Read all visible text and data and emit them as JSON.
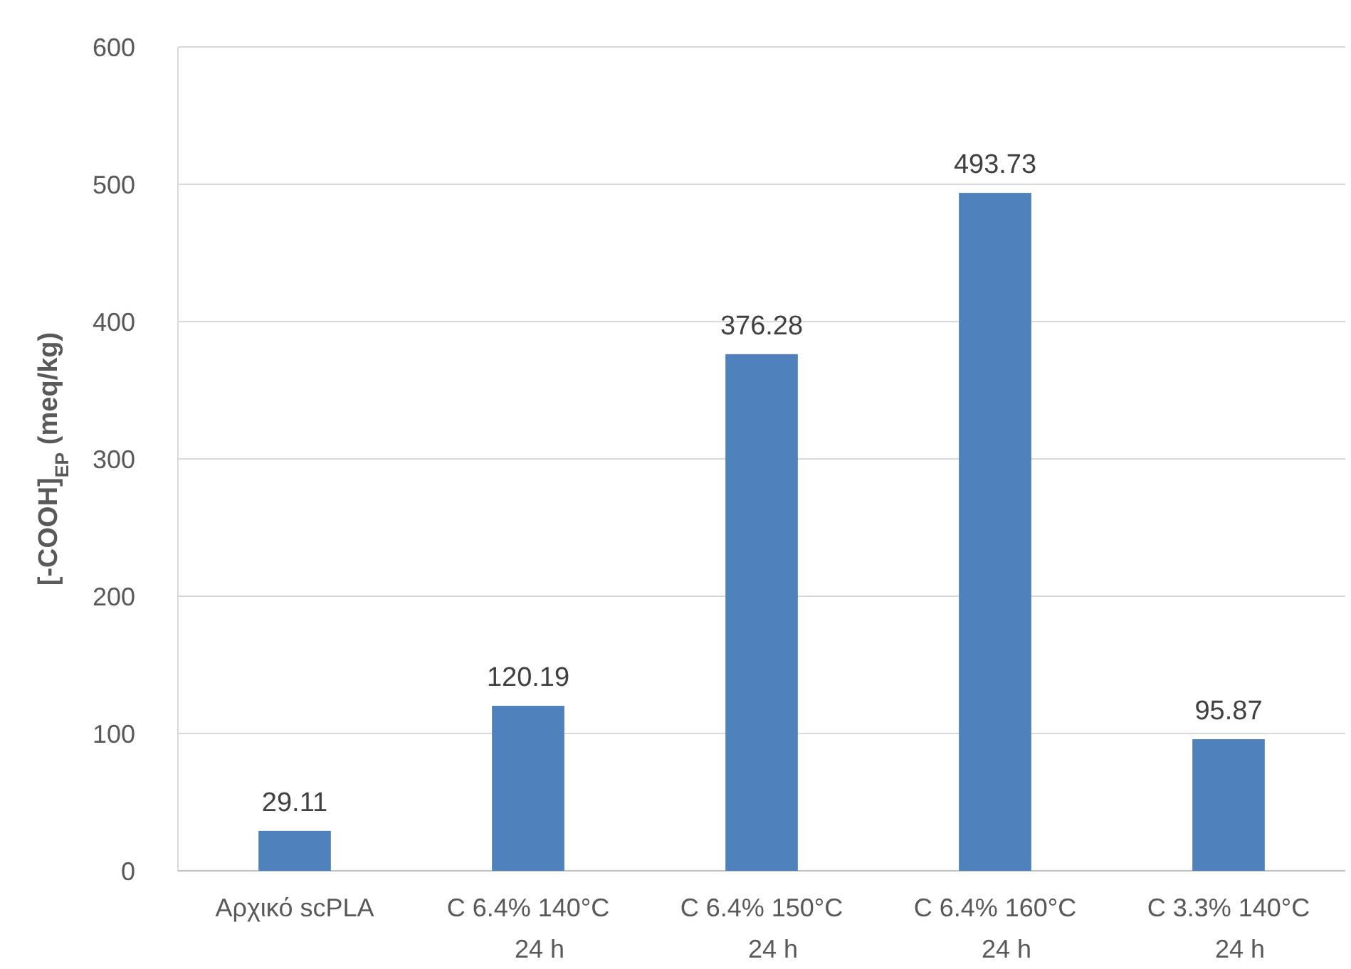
{
  "chart_data": {
    "type": "bar",
    "ylabel": "[-COOH]$_{EP}$ (meq/kg)",
    "categories": [
      "Αρχικό scPLA",
      "C 6.4% 140°C\n24 h",
      "C 6.4% 150°C\n24 h",
      "C 6.4% 160°C\n24 h",
      "C 3.3% 140°C\n24 h"
    ],
    "values": [
      29.11,
      120.19,
      376.28,
      493.73,
      95.87
    ],
    "color": "#4f81bd",
    "ylim": [
      0,
      600
    ],
    "yticks": [
      0,
      100,
      200,
      300,
      400,
      500,
      600
    ],
    "grid": "y",
    "data_labels": true
  }
}
